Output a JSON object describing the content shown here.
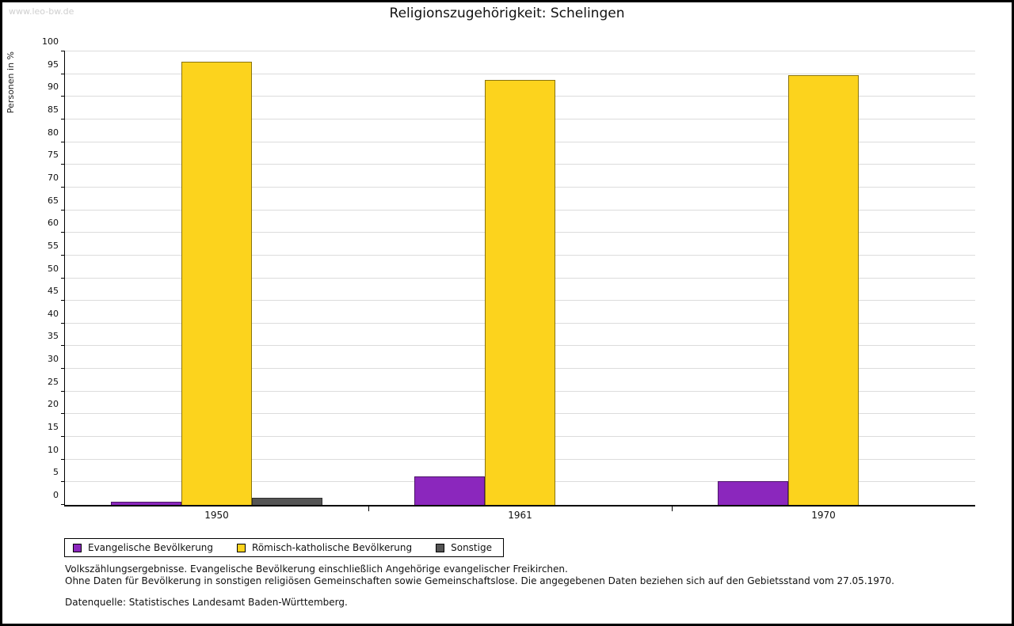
{
  "watermark": "www.leo-bw.de",
  "title": "Religionszugehörigkeit: Schelingen",
  "chart_data": {
    "type": "bar",
    "title": "Religionszugehörigkeit: Schelingen",
    "xlabel": "",
    "ylabel": "Personen in %",
    "ylim": [
      0,
      100
    ],
    "ytick_step": 5,
    "grid": true,
    "legend_position": "bottom-left",
    "categories": [
      "1950",
      "1961",
      "1970"
    ],
    "series": [
      {
        "name": "Evangelische Bevölkerung",
        "color": "#8b27bd",
        "values": [
          0.7,
          6.3,
          5.3
        ]
      },
      {
        "name": "Römisch-katholische Bevölkerung",
        "color": "#fcd31d",
        "values": [
          97.8,
          93.7,
          94.7
        ]
      },
      {
        "name": "Sonstige",
        "color": "#545454",
        "values": [
          1.5,
          0,
          0
        ]
      }
    ]
  },
  "footnotes": [
    "Volkszählungsergebnisse. Evangelische Bevölkerung einschließlich Angehörige evangelischer Freikirchen.",
    "Ohne Daten für Bevölkerung in sonstigen religiösen Gemeinschaften sowie Gemeinschaftslose. Die angegebenen Daten beziehen sich auf den Gebietsstand vom 27.05.1970.",
    "Datenquelle: Statistisches Landesamt Baden-Württemberg."
  ]
}
